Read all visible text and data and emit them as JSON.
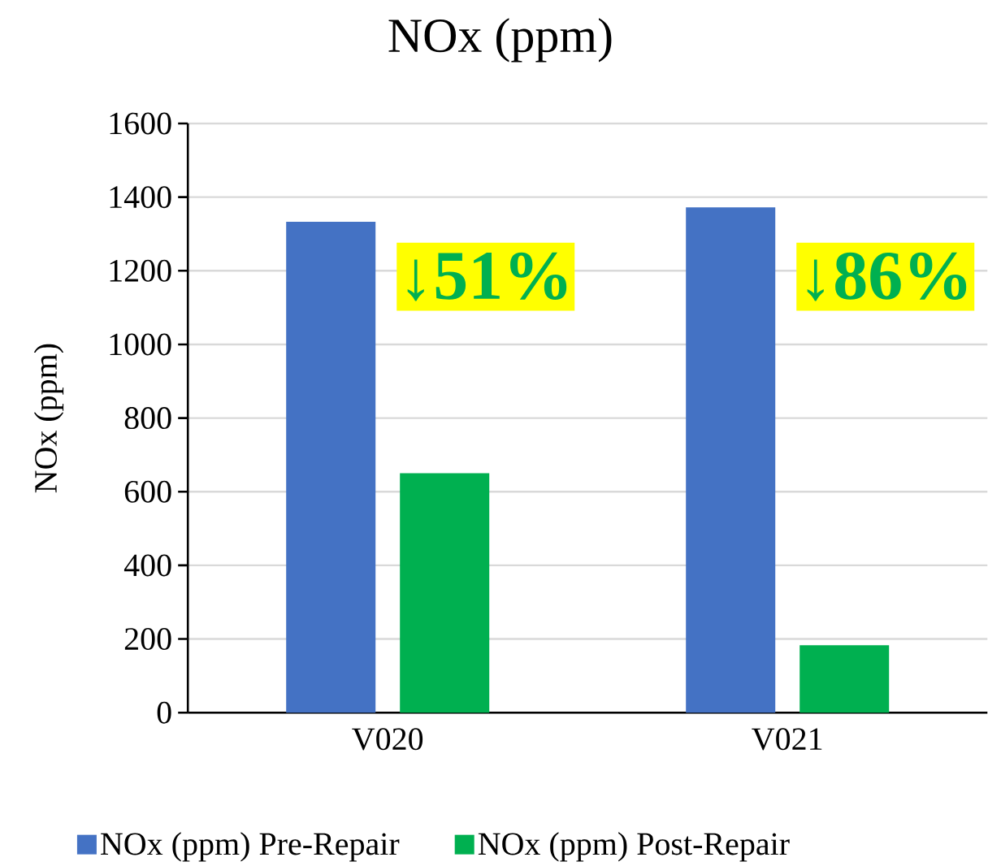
{
  "chart_data": {
    "type": "bar",
    "title": "NOx (ppm)",
    "ylabel": "NOx (ppm)",
    "categories": [
      "V020",
      "V021"
    ],
    "series": [
      {
        "name": "NOx (ppm) Pre-Repair",
        "color": "#4472c4",
        "values": [
          1333,
          1372
        ]
      },
      {
        "name": "NOx (ppm) Post-Repair",
        "color": "#00b050",
        "values": [
          650,
          183
        ]
      }
    ],
    "ylim": [
      0,
      1600
    ],
    "yticks": [
      0,
      200,
      400,
      600,
      800,
      1000,
      1200,
      1400,
      1600
    ],
    "grid": "y",
    "legend": "bottom",
    "annotations": [
      "↓51%",
      "↓86%"
    ]
  }
}
